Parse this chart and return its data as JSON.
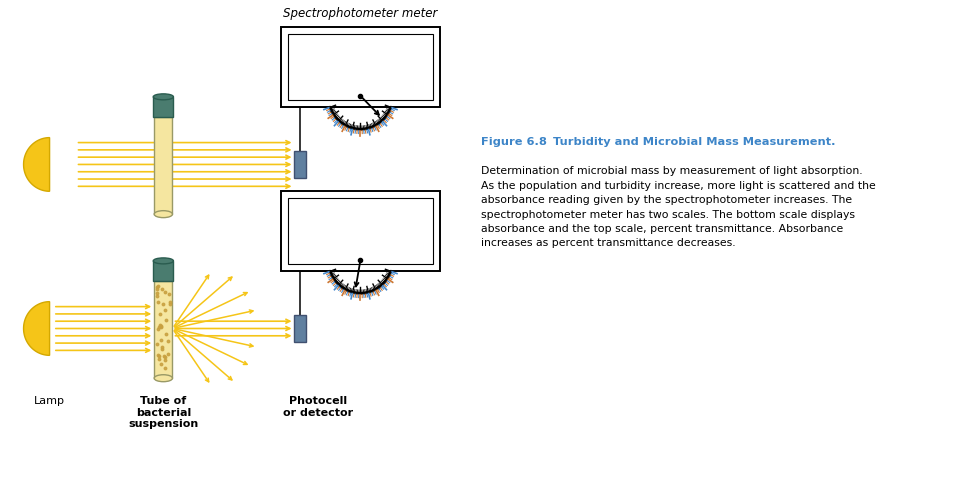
{
  "fig_width": 9.66,
  "fig_height": 4.84,
  "bg_color": "#ffffff",
  "title_spectro": "Spectrophotometer meter",
  "caption_fig_label": "Figure 6.8",
  "caption_fig_title": "   Turbidity and Microbial Mass Measurement.",
  "caption_text": "Determination of microbial mass by measurement of light absorption.\nAs the population and turbidity increase, more light is scattered and the\nabsorbance reading given by the spectrophotometer increases. The\nspectrophotometer meter has two scales. The bottom scale displays\nabsorbance and the top scale, percent transmittance. Absorbance\nincreases as percent transmittance decreases.",
  "caption_color_bold": "#3d85c8",
  "caption_color_text": "#000000",
  "lamp_color": "#f5c518",
  "lamp_dark": "#d4a800",
  "tube_cap_color": "#4a7c6f",
  "tube_liquid_color": "#f5e6a0",
  "photocell_color": "#6080a0",
  "arrow_color": "#f5c518",
  "label_color": "#000000",
  "lamp_label": "Lamp",
  "tube_label": "Tube of\nbacterial\nsuspension",
  "photocell_label": "Photocell\nor detector"
}
